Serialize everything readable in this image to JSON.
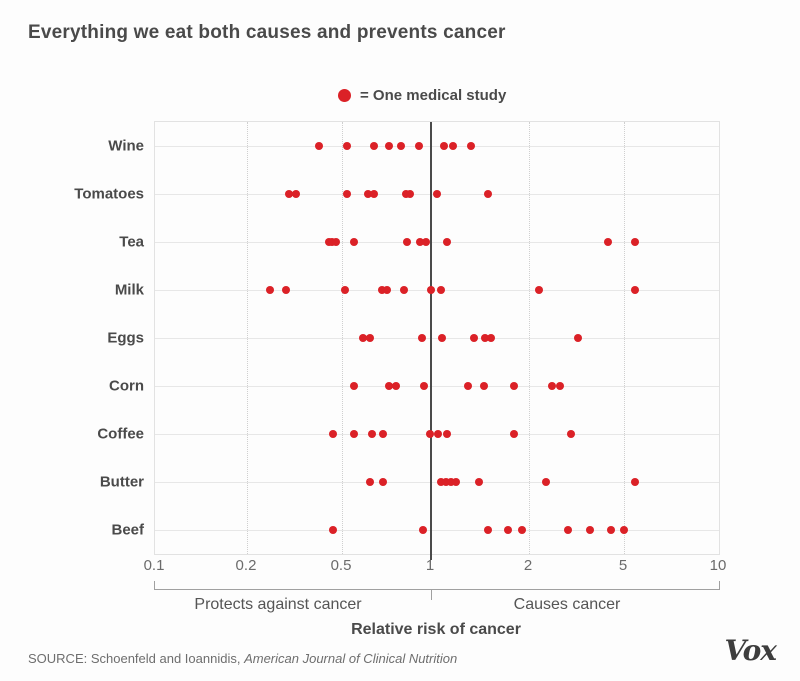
{
  "title": "Everything we eat both causes and prevents cancer",
  "legend": {
    "label": "= One medical study"
  },
  "chart_data": {
    "type": "scatter",
    "title": "Everything we eat both causes and prevents cancer",
    "xlabel": "Relative risk of cancer",
    "x_scale": "log",
    "x_ticks": [
      0.1,
      0.2,
      0.5,
      1,
      2,
      5,
      10
    ],
    "x_tick_labels": [
      "0.1",
      "0.2",
      "0.5",
      "1",
      "2",
      "5",
      "10"
    ],
    "xlim": [
      0.1,
      10
    ],
    "grid": "dotted-vertical",
    "reference_line_x": 1,
    "left_region_label": "Protects against cancer",
    "right_region_label": "Causes cancer",
    "categories": [
      "Wine",
      "Tomatoes",
      "Tea",
      "Milk",
      "Eggs",
      "Corn",
      "Coffee",
      "Butter",
      "Beef"
    ],
    "series": [
      {
        "name": "Wine",
        "values": [
          0.4,
          0.52,
          0.64,
          0.72,
          0.79,
          0.91,
          1.1,
          1.17,
          1.33
        ]
      },
      {
        "name": "Tomatoes",
        "values": [
          0.3,
          0.32,
          0.52,
          0.61,
          0.64,
          0.82,
          0.85,
          1.04,
          1.5
        ]
      },
      {
        "name": "Tea",
        "values": [
          0.44,
          0.455,
          0.47,
          0.55,
          0.83,
          0.92,
          0.96,
          1.12,
          4.3,
          5.4
        ]
      },
      {
        "name": "Milk",
        "values": [
          0.25,
          0.29,
          0.51,
          0.68,
          0.71,
          0.81,
          1.0,
          1.07,
          2.2,
          5.4
        ]
      },
      {
        "name": "Eggs",
        "values": [
          0.59,
          0.62,
          0.93,
          1.08,
          1.36,
          1.46,
          1.53,
          3.2
        ]
      },
      {
        "name": "Corn",
        "values": [
          0.55,
          0.72,
          0.76,
          0.95,
          1.3,
          1.45,
          1.8,
          2.5,
          2.7
        ]
      },
      {
        "name": "Coffee",
        "values": [
          0.46,
          0.55,
          0.63,
          0.69,
          0.99,
          1.05,
          1.12,
          1.8,
          3.0
        ]
      },
      {
        "name": "Butter",
        "values": [
          0.62,
          0.69,
          1.07,
          1.11,
          1.15,
          1.19,
          1.4,
          2.35,
          5.4
        ]
      },
      {
        "name": "Beef",
        "values": [
          0.46,
          0.94,
          1.5,
          1.73,
          1.9,
          2.9,
          3.6,
          4.4,
          5.0
        ]
      }
    ]
  },
  "footer": {
    "source_prefix": "SOURCE: Schoenfeld and Ioannidis, ",
    "source_journal": "American Journal of Clinical Nutrition",
    "logo": "Vox"
  },
  "colors": {
    "dot_red": "#db2127",
    "reference_line": "#4a4a4a",
    "text_dark": "#4a4a4a",
    "text_gray": "#6b6b6b"
  }
}
